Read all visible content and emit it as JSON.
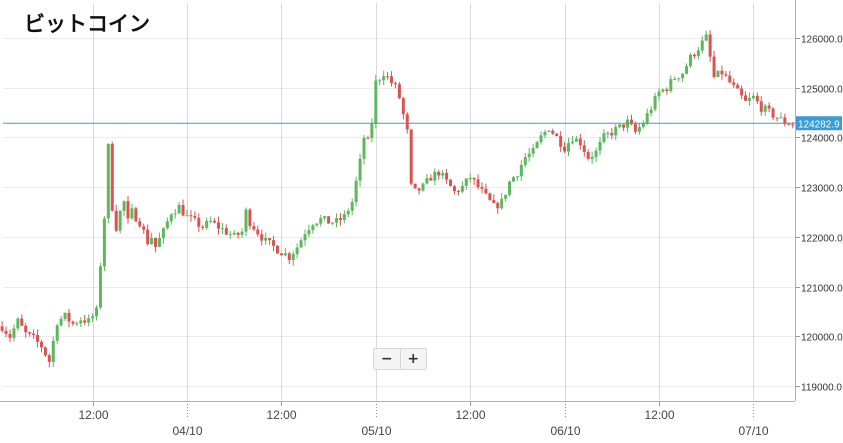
{
  "colors": {
    "up": "#5cb85c",
    "down": "#d9534f",
    "price_line": "#3a9bd5",
    "grid": "#ebebeb",
    "vgrid": "#dadada"
  },
  "zoom": {
    "minus": "−",
    "plus": "+"
  },
  "chart_data": {
    "type": "candlestick",
    "title": "ビットコイン",
    "ylim": [
      118700,
      126700
    ],
    "y_ticks": [
      119000,
      120000,
      121000,
      122000,
      123000,
      124000,
      125000,
      126000
    ],
    "y_tick_labels": [
      "119000.0",
      "120000.0",
      "121000.0",
      "122000.0",
      "123000.0",
      "124000.0",
      "125000.0",
      "126000.0"
    ],
    "x_ticks": [
      {
        "label": "12:00",
        "hours": -12
      },
      {
        "label": "04/10",
        "hours": 0
      },
      {
        "label": "12:00",
        "hours": 12
      },
      {
        "label": "05/10",
        "hours": 24
      },
      {
        "label": "12:00",
        "hours": 36
      },
      {
        "label": "06/10",
        "hours": 48
      },
      {
        "label": "12:00",
        "hours": 60
      },
      {
        "label": "07/10",
        "hours": 72
      }
    ],
    "x_day_ticks": [
      "04/10",
      "05/10",
      "06/10",
      "07/10"
    ],
    "current_price": 124282.9,
    "current_price_label": "124282.9",
    "candle_interval_hours": 0.5,
    "candle_range_hours": [
      -23.5,
      78
    ],
    "ohlc_closes": [
      [
        -23.5,
        120200
      ],
      [
        -22.5,
        120000
      ],
      [
        -21.5,
        120300
      ],
      [
        -20.5,
        120050
      ],
      [
        -19.5,
        119950
      ],
      [
        -18.5,
        119800
      ],
      [
        -17.5,
        119500
      ],
      [
        -16.5,
        120300
      ],
      [
        -15.5,
        120400
      ],
      [
        -14.5,
        120250
      ],
      [
        -13.5,
        120350
      ],
      [
        -12.5,
        120300
      ],
      [
        -11.5,
        120500
      ],
      [
        -10.5,
        122400
      ],
      [
        -10,
        123800
      ],
      [
        -9.5,
        122600
      ],
      [
        -9,
        122200
      ],
      [
        -8.5,
        122500
      ],
      [
        -8,
        122700
      ],
      [
        -7.5,
        122300
      ],
      [
        -7,
        122500
      ],
      [
        -6.5,
        122400
      ],
      [
        -6,
        122300
      ],
      [
        -5.5,
        122100
      ],
      [
        -5,
        121900
      ],
      [
        -4.5,
        122000
      ],
      [
        -4,
        121800
      ],
      [
        -3,
        122100
      ],
      [
        -2,
        122500
      ],
      [
        -1,
        122600
      ],
      [
        0,
        122400
      ],
      [
        1,
        122300
      ],
      [
        2,
        122200
      ],
      [
        3,
        122300
      ],
      [
        4,
        122200
      ],
      [
        5,
        122100
      ],
      [
        6,
        122000
      ],
      [
        7,
        122100
      ],
      [
        7.5,
        122500
      ],
      [
        8,
        122300
      ],
      [
        9,
        122100
      ],
      [
        10,
        121900
      ],
      [
        11,
        121800
      ],
      [
        12,
        121700
      ],
      [
        13,
        121600
      ],
      [
        14,
        121800
      ],
      [
        15,
        122100
      ],
      [
        16,
        122300
      ],
      [
        17,
        122350
      ],
      [
        18,
        122300
      ],
      [
        19,
        122300
      ],
      [
        20,
        122400
      ],
      [
        21,
        122700
      ],
      [
        22,
        123500
      ],
      [
        22.5,
        124000
      ],
      [
        23,
        123900
      ],
      [
        23.5,
        124300
      ],
      [
        24,
        125100
      ],
      [
        25,
        125300
      ],
      [
        26,
        125100
      ],
      [
        26.5,
        125000
      ],
      [
        27,
        124800
      ],
      [
        28,
        124100
      ],
      [
        28.5,
        123000
      ],
      [
        29,
        122900
      ],
      [
        30,
        123000
      ],
      [
        31,
        123200
      ],
      [
        32,
        123300
      ],
      [
        33,
        123100
      ],
      [
        34,
        122900
      ],
      [
        35,
        123000
      ],
      [
        36,
        123200
      ],
      [
        37,
        123000
      ],
      [
        38,
        122800
      ],
      [
        39,
        122600
      ],
      [
        40,
        122700
      ],
      [
        41,
        123100
      ],
      [
        42,
        123300
      ],
      [
        43,
        123600
      ],
      [
        44,
        123700
      ],
      [
        45,
        124000
      ],
      [
        46,
        124200
      ],
      [
        47,
        124000
      ],
      [
        48,
        123800
      ],
      [
        49,
        124000
      ],
      [
        50,
        123900
      ],
      [
        51,
        123600
      ],
      [
        52,
        123700
      ],
      [
        53,
        124000
      ],
      [
        54,
        124100
      ],
      [
        55,
        124200
      ],
      [
        56,
        124300
      ],
      [
        57,
        124100
      ],
      [
        58,
        124300
      ],
      [
        59,
        124600
      ],
      [
        60,
        124900
      ],
      [
        61,
        125000
      ],
      [
        62,
        125200
      ],
      [
        63,
        125300
      ],
      [
        64,
        125600
      ],
      [
        65,
        125800
      ],
      [
        66,
        126000
      ],
      [
        67,
        125200
      ],
      [
        68,
        125300
      ],
      [
        69,
        125100
      ],
      [
        70,
        124900
      ],
      [
        71,
        124700
      ],
      [
        72,
        124800
      ],
      [
        73,
        124600
      ],
      [
        74,
        124500
      ],
      [
        75,
        124400
      ],
      [
        76,
        124300
      ],
      [
        77,
        124280
      ],
      [
        78,
        124283
      ]
    ]
  }
}
